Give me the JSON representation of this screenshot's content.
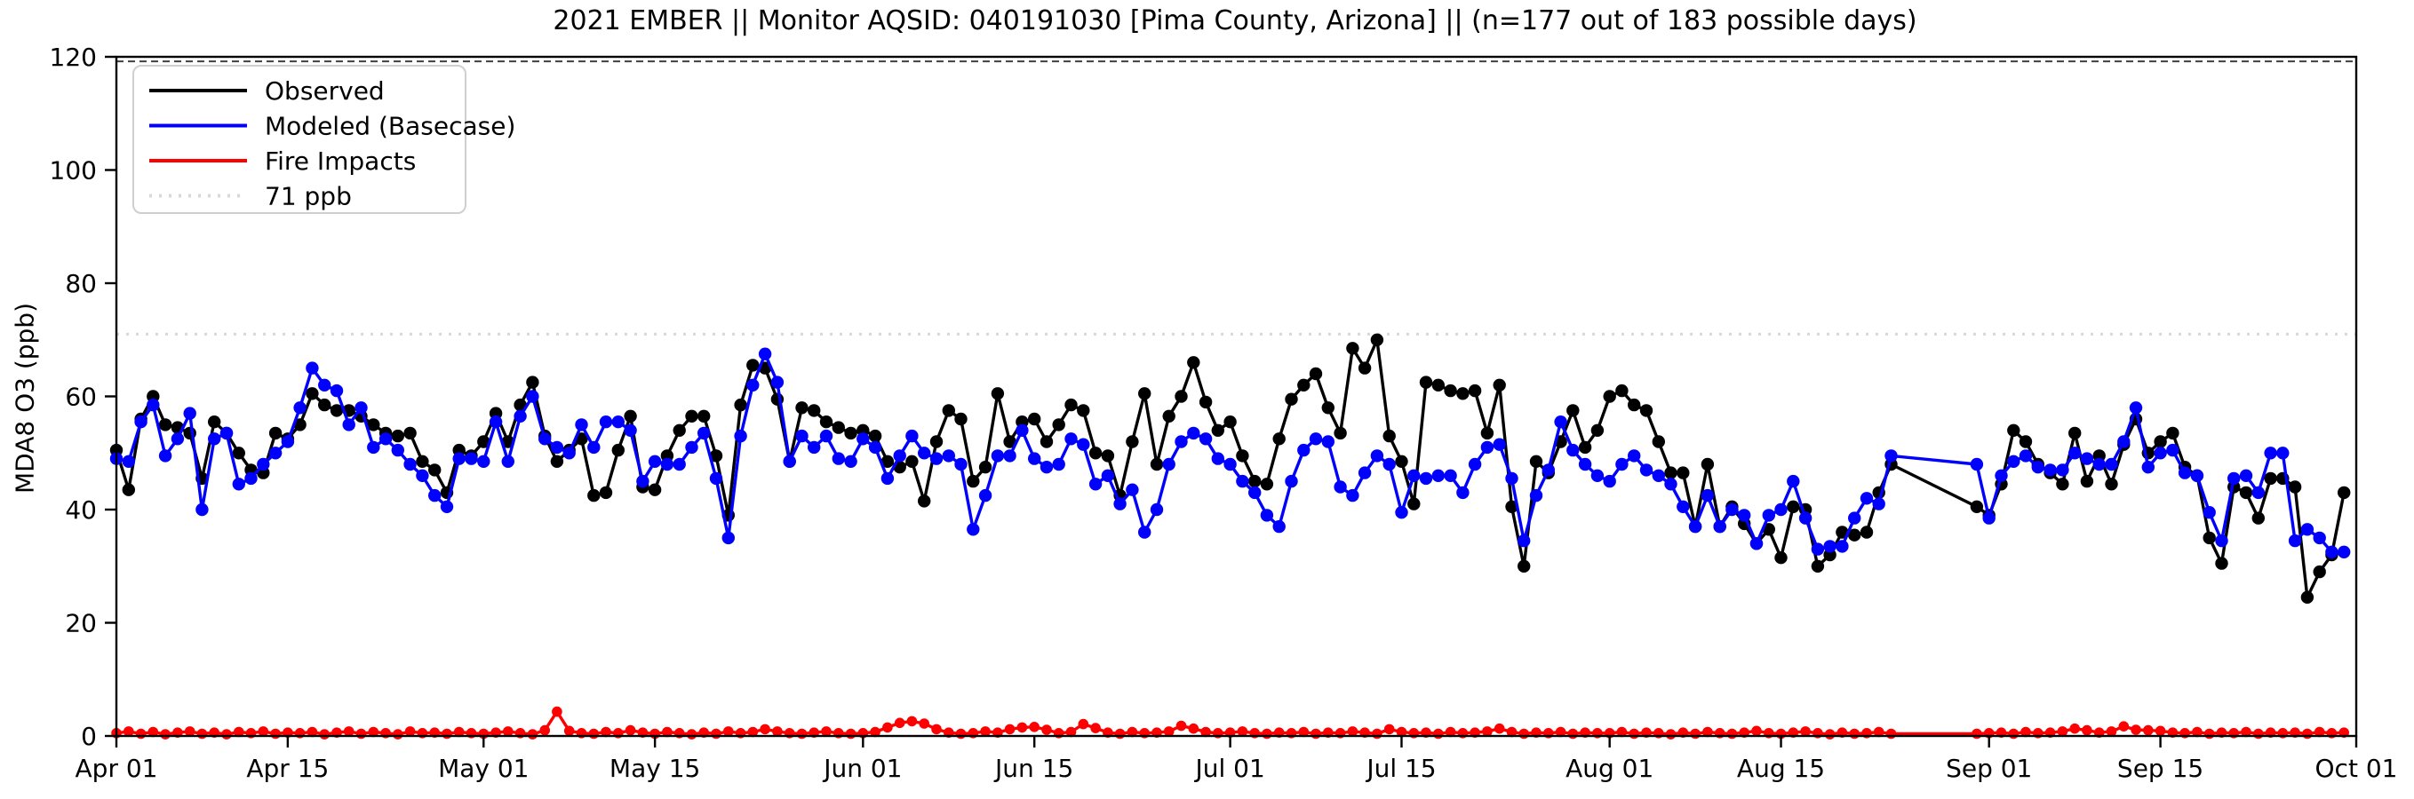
{
  "title": "2021 EMBER || Monitor AQSID: 040191030 [Pima County, Arizona] || (n=177 out of 183 possible days)",
  "y_axis": {
    "label": "MDA8 O3 (ppb)",
    "ticks": [
      0,
      20,
      40,
      60,
      80,
      100,
      120
    ],
    "lim": [
      0,
      120
    ]
  },
  "x_axis": {
    "start_date": "2021-04-01",
    "end_date": "2021-10-01",
    "total_days": 183,
    "ticks": [
      {
        "day": 0,
        "label": "Apr 01"
      },
      {
        "day": 14,
        "label": "Apr 15"
      },
      {
        "day": 30,
        "label": "May 01"
      },
      {
        "day": 44,
        "label": "May 15"
      },
      {
        "day": 61,
        "label": "Jun 01"
      },
      {
        "day": 75,
        "label": "Jun 15"
      },
      {
        "day": 91,
        "label": "Jul 01"
      },
      {
        "day": 105,
        "label": "Jul 15"
      },
      {
        "day": 122,
        "label": "Aug 01"
      },
      {
        "day": 136,
        "label": "Aug 15"
      },
      {
        "day": 153,
        "label": "Sep 01"
      },
      {
        "day": 167,
        "label": "Sep 15"
      },
      {
        "day": 183,
        "label": "Oct 01"
      }
    ]
  },
  "legend": {
    "items": [
      {
        "label": "Observed",
        "color": "#000000",
        "dash": "solid"
      },
      {
        "label": "Modeled (Basecase)",
        "color": "#0000ff",
        "dash": "solid"
      },
      {
        "label": "Fire Impacts",
        "color": "#ff0000",
        "dash": "solid"
      },
      {
        "label": "71 ppb",
        "color": "#d8d8d8",
        "dash": "dotted"
      }
    ]
  },
  "reference_lines": [
    {
      "value": 71,
      "color": "#d8d8d8",
      "dash": "3 8",
      "width": 3
    },
    {
      "value": 119.2,
      "color": "#404040",
      "dash": "8 5",
      "width": 2
    }
  ],
  "chart_data": {
    "type": "line",
    "title": "2021 EMBER || Monitor AQSID: 040191030 [Pima County, Arizona] || (n=177 out of 183 possible days)",
    "xlabel": "",
    "ylabel": "MDA8 O3 (ppb)",
    "ylim": [
      0,
      120
    ],
    "x_start_date": "2021-04-01",
    "days": 183,
    "missing_days": "2021-08-25 through 2021-08-30 (6 days, lines connect straight across gap)",
    "grid": false,
    "legend_position": "upper left",
    "threshold_line_ppb": 71,
    "series": [
      {
        "name": "Observed",
        "color": "#000000",
        "values": [
          50.5,
          43.5,
          56,
          60,
          55,
          54.5,
          53.5,
          45.5,
          55.5,
          53.5,
          50,
          47,
          46.5,
          53.5,
          52.5,
          55,
          60.5,
          58.5,
          57.5,
          57.5,
          56.5,
          55,
          53.5,
          53,
          53.5,
          48.5,
          47,
          43,
          50.5,
          49.5,
          52,
          57,
          52,
          58.5,
          62.5,
          53,
          48.5,
          50.5,
          52.5,
          42.5,
          43,
          50.5,
          56.5,
          44,
          43.5,
          49.5,
          54,
          56.5,
          56.5,
          49.5,
          39,
          58.5,
          65.5,
          65,
          59.5,
          48.5,
          58,
          57.5,
          55.5,
          54.5,
          53.5,
          54,
          53,
          48.5,
          47.5,
          48.5,
          41.5,
          52,
          57.5,
          56,
          45,
          47.5,
          60.5,
          52,
          55.5,
          56,
          52,
          55,
          58.5,
          57.5,
          50,
          49.5,
          42.5,
          52,
          60.5,
          48,
          56.5,
          60,
          66,
          59,
          54,
          55.5,
          49.5,
          45,
          44.5,
          52.5,
          59.5,
          62,
          64,
          58,
          53.5,
          68.5,
          65,
          70,
          53,
          48.5,
          41,
          62.5,
          62,
          61,
          60.5,
          61,
          53.5,
          62,
          40.5,
          30,
          48.5,
          46.5,
          52,
          57.5,
          51,
          54,
          60,
          61,
          58.5,
          57.5,
          52,
          46.5,
          46.5,
          37,
          48,
          37,
          40.5,
          37.5,
          34,
          36.5,
          31.5,
          40.5,
          40,
          30,
          32,
          36,
          35.5,
          36,
          43,
          48,
          null,
          null,
          null,
          null,
          null,
          null,
          40.5,
          39,
          44.5,
          54,
          52,
          48,
          46.5,
          44.5,
          53.5,
          45,
          49.5,
          44.5,
          51.5,
          56,
          50,
          52,
          53.5,
          47.5,
          46,
          35,
          30.5,
          44,
          43,
          38.5,
          45.5,
          45.5,
          44,
          24.5,
          29,
          32,
          43
        ]
      },
      {
        "name": "Modeled (Basecase)",
        "color": "#0000ff",
        "values": [
          49,
          48.5,
          55.5,
          58.5,
          49.5,
          52.5,
          57,
          40,
          52.5,
          53.5,
          44.5,
          45.5,
          48,
          50,
          52,
          58,
          65,
          62,
          61,
          55,
          58,
          51,
          52.5,
          50.5,
          48,
          46,
          42.5,
          40.5,
          49,
          49,
          48.5,
          55.5,
          48.5,
          56.5,
          60,
          52.5,
          51,
          50,
          55,
          51,
          55.5,
          55.5,
          54,
          45,
          48.5,
          48,
          48,
          51,
          53.5,
          45.5,
          35,
          53,
          62,
          67.5,
          62.5,
          48.5,
          53,
          51,
          53,
          49,
          48.5,
          52.5,
          51,
          45.5,
          49.5,
          53,
          50,
          49,
          49.5,
          48,
          36.5,
          42.5,
          49.5,
          49.5,
          54,
          49,
          47.5,
          48,
          52.5,
          51.5,
          44.5,
          46,
          41,
          43.5,
          36,
          40,
          48,
          52,
          53.5,
          52.5,
          49,
          48,
          45,
          43,
          39,
          37,
          45,
          50.5,
          52.5,
          52,
          44,
          42.5,
          46.5,
          49.5,
          48,
          39.5,
          46,
          45.5,
          46,
          46,
          43,
          48,
          51,
          51.5,
          45.5,
          34.5,
          42.5,
          47,
          55.5,
          50.5,
          48,
          46,
          45,
          48,
          49.5,
          47,
          46,
          44.5,
          40.5,
          37,
          42.5,
          37,
          40,
          39,
          34,
          39,
          40,
          45,
          38.5,
          33,
          33.5,
          33.5,
          38.5,
          42,
          41,
          49.5,
          null,
          null,
          null,
          null,
          null,
          null,
          48,
          38.5,
          46,
          48.5,
          49.5,
          47.5,
          47,
          47,
          50,
          49,
          48,
          48,
          52,
          58,
          47.5,
          50,
          50.5,
          46.5,
          46,
          39.5,
          34.5,
          45.5,
          46,
          43,
          50,
          50,
          34.5,
          36.5,
          35,
          32.5,
          32.5
        ]
      },
      {
        "name": "Fire Impacts",
        "color": "#ff0000",
        "values": [
          0.5,
          0.8,
          0.4,
          0.7,
          0.3,
          0.6,
          0.8,
          0.4,
          0.6,
          0.3,
          0.7,
          0.5,
          0.8,
          0.4,
          0.6,
          0.5,
          0.7,
          0.3,
          0.6,
          0.8,
          0.4,
          0.7,
          0.5,
          0.3,
          0.8,
          0.5,
          0.6,
          0.4,
          0.7,
          0.5,
          0.4,
          0.6,
          0.8,
          0.5,
          0.3,
          1.0,
          4.3,
          0.9,
          0.5,
          0.4,
          0.7,
          0.5,
          1.0,
          0.6,
          0.4,
          0.7,
          0.5,
          0.3,
          0.6,
          0.4,
          0.8,
          0.5,
          0.7,
          1.2,
          0.8,
          0.5,
          0.4,
          0.6,
          0.8,
          0.5,
          0.4,
          0.5,
          0.7,
          1.5,
          2.3,
          2.6,
          2.2,
          1.2,
          0.6,
          0.4,
          0.5,
          0.8,
          0.6,
          1.2,
          1.5,
          1.6,
          1.1,
          0.5,
          0.7,
          2.1,
          1.4,
          0.6,
          0.4,
          0.7,
          0.5,
          0.6,
          0.8,
          1.8,
          1.3,
          0.7,
          0.5,
          0.6,
          0.8,
          0.5,
          0.4,
          0.6,
          0.5,
          0.7,
          0.4,
          0.6,
          0.5,
          0.8,
          0.6,
          0.4,
          1.2,
          0.7,
          0.5,
          0.6,
          0.4,
          0.7,
          0.5,
          0.6,
          0.8,
          1.3,
          0.7,
          0.4,
          0.6,
          0.5,
          0.7,
          0.4,
          0.6,
          0.5,
          0.5,
          0.7,
          0.4,
          0.6,
          0.5,
          0.3,
          0.6,
          0.4,
          0.7,
          0.5,
          0.4,
          0.6,
          0.9,
          0.5,
          0.4,
          0.6,
          0.8,
          0.5,
          0.3,
          0.6,
          0.4,
          0.5,
          0.7,
          0.4,
          null,
          null,
          null,
          null,
          null,
          null,
          0.4,
          0.5,
          0.6,
          0.4,
          0.7,
          0.5,
          0.6,
          0.8,
          1.3,
          1.0,
          0.6,
          0.8,
          1.7,
          1.1,
          1.0,
          0.9,
          0.6,
          0.5,
          0.7,
          0.4,
          0.6,
          0.5,
          0.7,
          0.4,
          0.6,
          0.5,
          0.6,
          0.4,
          0.7,
          0.5,
          0.6
        ]
      }
    ]
  }
}
